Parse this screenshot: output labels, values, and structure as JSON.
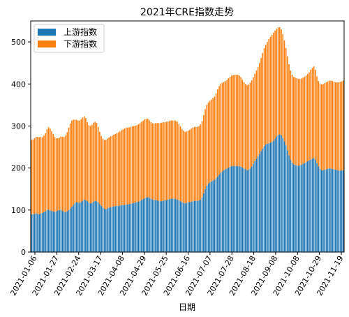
{
  "chart_data": {
    "type": "bar",
    "stacked": true,
    "title": "2021年CRE指数走势",
    "xlabel": "日期",
    "ylabel": "",
    "ylim": [
      0,
      550
    ],
    "yticks": [
      0,
      100,
      200,
      300,
      400,
      500
    ],
    "x_tick_labels": [
      "2021-01-06",
      "2021-01-27",
      "2021-02-24",
      "2021-03-17",
      "2021-04-08",
      "2021-04-29",
      "2021-05-25",
      "2021-06-16",
      "2021-07-07",
      "2021-07-28",
      "2021-08-18",
      "2021-09-08",
      "2021-10-08",
      "2021-10-29",
      "2021-11-19"
    ],
    "legend_position": "upper-left",
    "grid": false,
    "colors": {
      "upstream": "#1f77b4",
      "downstream": "#ff7f0e"
    },
    "series": [
      {
        "name": "上游指数",
        "values": [
          90,
          90,
          91,
          92,
          91,
          90,
          92,
          93,
          95,
          97,
          100,
          101,
          99,
          98,
          97,
          96,
          97,
          99,
          100,
          101,
          98,
          96,
          95,
          97,
          100,
          104,
          108,
          112,
          116,
          119,
          118,
          117,
          119,
          122,
          125,
          124,
          121,
          118,
          116,
          117,
          120,
          122,
          121,
          118,
          114,
          110,
          106,
          103,
          102,
          104,
          106,
          107,
          108,
          109,
          109,
          110,
          110,
          111,
          112,
          112,
          112,
          113,
          113,
          114,
          115,
          116,
          117,
          118,
          119,
          120,
          122,
          124,
          126,
          128,
          130,
          131,
          129,
          127,
          125,
          124,
          124,
          123,
          122,
          121,
          121,
          122,
          123,
          124,
          125,
          126,
          127,
          127,
          127,
          126,
          125,
          123,
          121,
          119,
          117,
          116,
          117,
          118,
          119,
          120,
          121,
          122,
          122,
          122,
          123,
          125,
          130,
          140,
          150,
          158,
          163,
          166,
          168,
          170,
          172,
          176,
          180,
          185,
          189,
          192,
          195,
          197,
          199,
          201,
          203,
          205,
          205,
          205,
          205,
          205,
          204,
          203,
          201,
          199,
          197,
          195,
          196,
          199,
          204,
          210,
          216,
          222,
          228,
          234,
          240,
          246,
          252,
          256,
          258,
          259,
          260,
          262,
          265,
          270,
          275,
          279,
          280,
          278,
          272,
          264,
          254,
          242,
          230,
          220,
          213,
          209,
          207,
          206,
          205,
          206,
          208,
          210,
          212,
          214,
          216,
          218,
          220,
          222,
          224,
          220,
          212,
          204,
          198,
          195,
          195,
          196,
          197,
          198,
          199,
          199,
          198,
          197,
          196,
          195,
          194,
          194,
          194,
          195
        ]
      },
      {
        "name": "下游指数",
        "values": [
          177,
          178,
          180,
          182,
          183,
          183,
          182,
          180,
          182,
          186,
          192,
          196,
          195,
          190,
          184,
          178,
          174,
          172,
          172,
          174,
          176,
          178,
          182,
          188,
          196,
          202,
          205,
          203,
          199,
          196,
          195,
          196,
          197,
          198,
          198,
          195,
          188,
          184,
          184,
          186,
          188,
          188,
          186,
          180,
          172,
          166,
          164,
          164,
          165,
          166,
          167,
          168,
          169,
          170,
          172,
          173,
          175,
          176,
          178,
          180,
          182,
          183,
          183,
          183,
          183,
          183,
          183,
          183,
          183,
          184,
          185,
          186,
          187,
          188,
          187,
          186,
          184,
          182,
          181,
          182,
          183,
          184,
          185,
          186,
          187,
          187,
          186,
          186,
          186,
          186,
          186,
          186,
          186,
          186,
          185,
          182,
          178,
          174,
          172,
          170,
          170,
          171,
          172,
          174,
          175,
          176,
          176,
          176,
          177,
          179,
          182,
          186,
          190,
          192,
          193,
          194,
          195,
          197,
          198,
          202,
          207,
          210,
          212,
          211,
          210,
          210,
          211,
          213,
          214,
          215,
          216,
          217,
          217,
          217,
          216,
          213,
          209,
          205,
          203,
          202,
          203,
          204,
          205,
          206,
          208,
          210,
          212,
          216,
          222,
          228,
          233,
          237,
          242,
          248,
          252,
          255,
          257,
          257,
          256,
          256,
          255,
          252,
          247,
          240,
          232,
          224,
          217,
          212,
          209,
          208,
          208,
          208,
          207,
          206,
          205,
          205,
          205,
          206,
          208,
          210,
          214,
          216,
          218,
          214,
          206,
          203,
          203,
          204,
          205,
          206,
          207,
          208,
          209,
          209,
          209,
          208,
          208,
          209,
          210,
          211,
          212,
          213
        ]
      }
    ]
  }
}
